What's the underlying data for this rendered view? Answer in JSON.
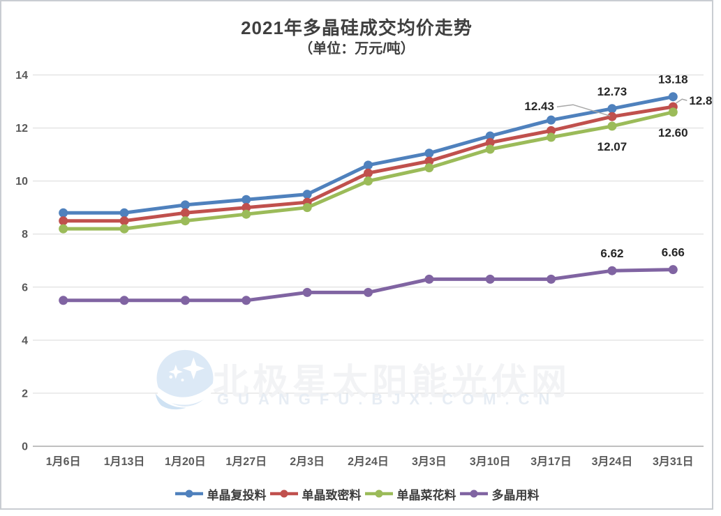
{
  "page": {
    "title": "2021年多晶硅成交均价走势",
    "subtitle": "（单位：万元/吨）"
  },
  "watermark": {
    "cn": "北极星太阳能光伏网",
    "en": "GUANGFU.BJX.COM.CN"
  },
  "chart_data": {
    "type": "line",
    "title": "2021年多晶硅成交均价走势",
    "subtitle": "（单位：万元/吨）",
    "unit": "万元/吨",
    "xlabel": "",
    "ylabel": "",
    "ylim": [
      0,
      14
    ],
    "y_ticks": [
      0,
      2,
      4,
      6,
      8,
      10,
      12,
      14
    ],
    "grid": true,
    "legend_position": "bottom",
    "categories": [
      "1月6日",
      "1月13日",
      "1月20日",
      "1月27日",
      "2月3日",
      "2月24日",
      "3月3日",
      "3月10日",
      "3月17日",
      "3月24日",
      "3月31日"
    ],
    "series": [
      {
        "id": "mono-recharge",
        "name": "单晶复投料",
        "color": "#4F81BD",
        "values": [
          8.8,
          8.8,
          9.1,
          9.3,
          9.5,
          10.6,
          11.05,
          11.7,
          12.3,
          12.73,
          13.18
        ]
      },
      {
        "id": "mono-dense",
        "name": "单晶致密料",
        "color": "#C0504D",
        "values": [
          8.5,
          8.5,
          8.8,
          9.0,
          9.2,
          10.3,
          10.75,
          11.45,
          11.9,
          12.43,
          12.8
        ]
      },
      {
        "id": "mono-cauliflower",
        "name": "单晶菜花料",
        "color": "#9BBB59",
        "values": [
          8.2,
          8.2,
          8.5,
          8.75,
          9.0,
          10.0,
          10.5,
          11.2,
          11.65,
          12.07,
          12.6
        ]
      },
      {
        "id": "poly",
        "name": "多晶用料",
        "color": "#8064A2",
        "values": [
          5.5,
          5.5,
          5.5,
          5.5,
          5.8,
          5.8,
          6.3,
          6.3,
          6.3,
          6.62,
          6.66
        ]
      }
    ],
    "annotations": [
      {
        "series_id": "mono-recharge",
        "index": 9,
        "text": "12.73",
        "placement": "above"
      },
      {
        "series_id": "mono-recharge",
        "index": 10,
        "text": "13.18",
        "placement": "above"
      },
      {
        "series_id": "mono-dense",
        "index": 9,
        "text": "12.43",
        "placement": "leader-left"
      },
      {
        "series_id": "mono-dense",
        "index": 10,
        "text": "12.8",
        "placement": "leader-right"
      },
      {
        "series_id": "mono-cauliflower",
        "index": 9,
        "text": "12.07",
        "placement": "below"
      },
      {
        "series_id": "mono-cauliflower",
        "index": 10,
        "text": "12.60",
        "placement": "below"
      },
      {
        "series_id": "poly",
        "index": 9,
        "text": "6.62",
        "placement": "above"
      },
      {
        "series_id": "poly",
        "index": 10,
        "text": "6.66",
        "placement": "above"
      }
    ],
    "colors": {
      "gridline": "#D9D9D9",
      "axis_line": "#BFBFBF",
      "axis_text": "#595959",
      "data_label": "#262626",
      "leader_line": "#A6A6A6"
    }
  }
}
